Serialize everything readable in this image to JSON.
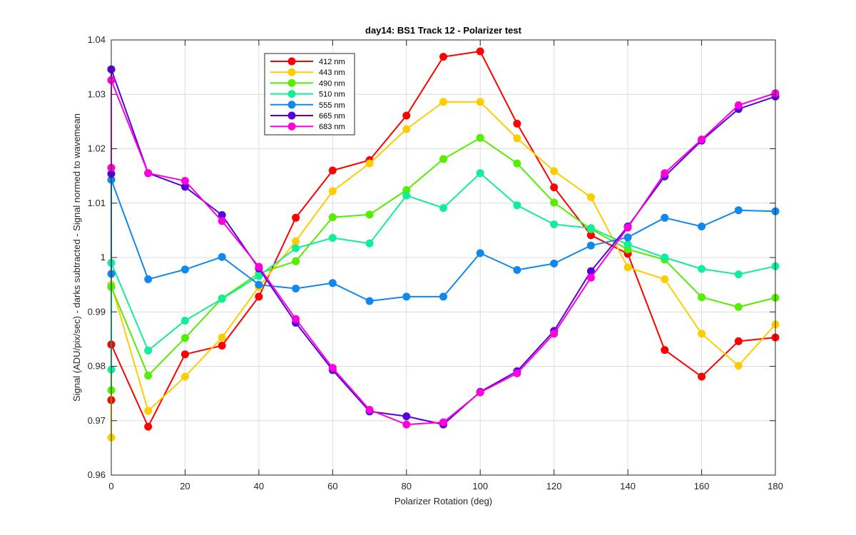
{
  "chart_data": {
    "type": "line",
    "title": "day14: BS1  Track 12 - Polarizer test",
    "xlabel": "Polarizer Rotation (deg)",
    "ylabel": "Signal (ADU/pix/sec) - darks subtracted - Signal normed to wavemean",
    "xlim": [
      0,
      180
    ],
    "ylim": [
      0.96,
      1.04
    ],
    "xticks": [
      0,
      20,
      40,
      60,
      80,
      100,
      120,
      140,
      160,
      180
    ],
    "yticks": [
      0.96,
      0.97,
      0.98,
      0.99,
      1,
      1.01,
      1.02,
      1.03,
      1.04
    ],
    "ytick_labels": [
      "0.96",
      "0.97",
      "0.98",
      "0.99",
      "1",
      "1.01",
      "1.02",
      "1.03",
      "1.04"
    ],
    "grid": true,
    "legend_position": "top-left",
    "x": [
      0,
      0,
      0,
      10,
      20,
      30,
      40,
      50,
      60,
      70,
      80,
      90,
      100,
      110,
      120,
      130,
      140,
      150,
      160,
      170,
      180
    ],
    "series": [
      {
        "name": "412 nm",
        "color": "#ff0000",
        "values": [
          0.9738,
          0.984,
          0.984,
          0.9689,
          0.9822,
          0.9838,
          0.9928,
          1.0073,
          1.016,
          1.0179,
          1.0261,
          1.0369,
          1.0379,
          1.0246,
          1.0129,
          1.0041,
          1.0007,
          0.983,
          0.9781,
          0.9846,
          0.9853
        ]
      },
      {
        "name": "443 nm",
        "color": "#ffcc00",
        "values": [
          0.9669,
          0.995,
          0.995,
          0.9718,
          0.9781,
          0.9853,
          0.9946,
          1.003,
          1.0122,
          1.0173,
          1.0236,
          1.0286,
          1.0286,
          1.0219,
          1.0159,
          1.0111,
          0.9982,
          0.996,
          0.986,
          0.9801,
          0.9877
        ]
      },
      {
        "name": "490 nm",
        "color": "#55ee00",
        "values": [
          0.9756,
          0.9946,
          0.9946,
          0.9783,
          0.9852,
          0.9925,
          0.9971,
          0.9993,
          1.0074,
          1.0079,
          1.0124,
          1.0181,
          1.022,
          1.0173,
          1.0101,
          1.0052,
          1.0015,
          0.9996,
          0.9927,
          0.9909,
          0.9926
        ]
      },
      {
        "name": "510 nm",
        "color": "#11ee99",
        "values": [
          0.9794,
          0.999,
          0.999,
          0.9829,
          0.9884,
          0.9924,
          0.9966,
          1.0017,
          1.0036,
          1.0026,
          1.0114,
          1.0091,
          1.0155,
          1.0096,
          1.0061,
          1.0054,
          1.0024,
          1.0,
          0.9979,
          0.9969,
          0.9984
        ]
      },
      {
        "name": "555 nm",
        "color": "#1188ee",
        "values": [
          0.997,
          1.0143,
          1.0143,
          0.996,
          0.9978,
          1.0001,
          0.995,
          0.9943,
          0.9953,
          0.992,
          0.9928,
          0.9928,
          1.0008,
          0.9977,
          0.9989,
          1.0022,
          1.0037,
          1.0073,
          1.0057,
          1.0087,
          1.0085
        ]
      },
      {
        "name": "665 nm",
        "color": "#5500dd",
        "values": [
          1.0154,
          1.0346,
          1.0346,
          1.0155,
          1.013,
          1.0078,
          0.998,
          0.988,
          0.9793,
          0.9717,
          0.9708,
          0.9693,
          0.9753,
          0.9791,
          0.9865,
          0.9975,
          1.0057,
          1.0149,
          1.0215,
          1.0273,
          1.0296
        ]
      },
      {
        "name": "683 nm",
        "color": "#ff00dd",
        "values": [
          1.0165,
          1.0326,
          1.0326,
          1.0155,
          1.0141,
          1.0067,
          0.9983,
          0.9887,
          0.9797,
          0.972,
          0.9693,
          0.9697,
          0.9752,
          0.9787,
          0.986,
          0.9963,
          1.0055,
          1.0155,
          1.0217,
          1.028,
          1.0302
        ]
      }
    ]
  }
}
